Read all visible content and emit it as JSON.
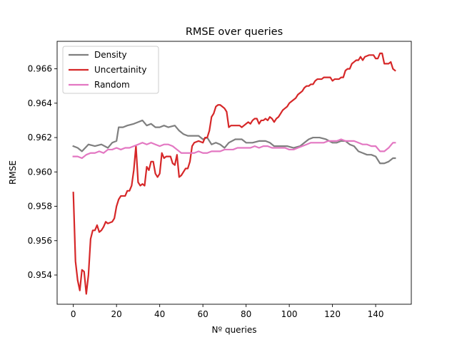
{
  "chart_data": {
    "type": "line",
    "title": "RMSE over queries",
    "xlabel": "Nº queries",
    "ylabel": "RMSE",
    "xlim": [
      -7.5,
      156.5
    ],
    "ylim": [
      0.9523,
      0.9676
    ],
    "xticks": [
      0,
      20,
      40,
      60,
      80,
      100,
      120,
      140
    ],
    "yticks": [
      0.954,
      0.956,
      0.958,
      0.96,
      0.962,
      0.964,
      0.966
    ],
    "ytick_labels": [
      "0.954",
      "0.956",
      "0.958",
      "0.960",
      "0.962",
      "0.964",
      "0.966"
    ],
    "grid": false,
    "legend_position": "upper-left",
    "series": [
      {
        "name": "Density",
        "color": "#7f7f7f",
        "points": [
          [
            0,
            0.9615
          ],
          [
            2,
            0.9614
          ],
          [
            4,
            0.9612
          ],
          [
            7,
            0.9616
          ],
          [
            10,
            0.9615
          ],
          [
            13,
            0.9616
          ],
          [
            16,
            0.9614
          ],
          [
            18,
            0.9617
          ],
          [
            20,
            0.9618
          ],
          [
            21,
            0.9626
          ],
          [
            23,
            0.9626
          ],
          [
            25,
            0.9627
          ],
          [
            28,
            0.9628
          ],
          [
            30,
            0.9629
          ],
          [
            32,
            0.963
          ],
          [
            34,
            0.9627
          ],
          [
            36,
            0.9628
          ],
          [
            38,
            0.9626
          ],
          [
            40,
            0.9626
          ],
          [
            42,
            0.9627
          ],
          [
            44,
            0.9626
          ],
          [
            47,
            0.9627
          ],
          [
            49,
            0.9624
          ],
          [
            51,
            0.9622
          ],
          [
            53,
            0.9621
          ],
          [
            55,
            0.9621
          ],
          [
            58,
            0.9621
          ],
          [
            60,
            0.9619
          ],
          [
            62,
            0.962
          ],
          [
            64,
            0.9616
          ],
          [
            66,
            0.9617
          ],
          [
            68,
            0.9616
          ],
          [
            70,
            0.9614
          ],
          [
            72,
            0.9617
          ],
          [
            75,
            0.9619
          ],
          [
            78,
            0.9619
          ],
          [
            80,
            0.9617
          ],
          [
            83,
            0.9617
          ],
          [
            86,
            0.9618
          ],
          [
            89,
            0.9618
          ],
          [
            91,
            0.9617
          ],
          [
            93,
            0.9615
          ],
          [
            96,
            0.9615
          ],
          [
            99,
            0.9615
          ],
          [
            102,
            0.9614
          ],
          [
            105,
            0.9615
          ],
          [
            107,
            0.9617
          ],
          [
            109,
            0.9619
          ],
          [
            111,
            0.962
          ],
          [
            114,
            0.962
          ],
          [
            117,
            0.9619
          ],
          [
            120,
            0.9617
          ],
          [
            122,
            0.9617
          ],
          [
            124,
            0.9618
          ],
          [
            126,
            0.9618
          ],
          [
            128,
            0.9616
          ],
          [
            130,
            0.9615
          ],
          [
            132,
            0.9612
          ],
          [
            134,
            0.9611
          ],
          [
            136,
            0.961
          ],
          [
            138,
            0.961
          ],
          [
            140,
            0.9609
          ],
          [
            142,
            0.9605
          ],
          [
            144,
            0.9605
          ],
          [
            146,
            0.9606
          ],
          [
            148,
            0.9608
          ],
          [
            149,
            0.9608
          ]
        ]
      },
      {
        "name": "Uncertainity",
        "color": "#d62728",
        "points": [
          [
            0,
            0.9588
          ],
          [
            1,
            0.9548
          ],
          [
            2,
            0.9537
          ],
          [
            3,
            0.9531
          ],
          [
            4,
            0.9543
          ],
          [
            5,
            0.9542
          ],
          [
            6,
            0.9529
          ],
          [
            7,
            0.954
          ],
          [
            8,
            0.9561
          ],
          [
            9,
            0.9566
          ],
          [
            10,
            0.9566
          ],
          [
            11,
            0.9569
          ],
          [
            12,
            0.9565
          ],
          [
            13,
            0.9566
          ],
          [
            14,
            0.9568
          ],
          [
            15,
            0.9571
          ],
          [
            16,
            0.957
          ],
          [
            18,
            0.9571
          ],
          [
            19,
            0.9573
          ],
          [
            20,
            0.958
          ],
          [
            21,
            0.9584
          ],
          [
            22,
            0.9586
          ],
          [
            23,
            0.9586
          ],
          [
            24,
            0.9586
          ],
          [
            25,
            0.9589
          ],
          [
            26,
            0.9589
          ],
          [
            27,
            0.9592
          ],
          [
            28,
            0.9601
          ],
          [
            29,
            0.9615
          ],
          [
            30,
            0.9594
          ],
          [
            31,
            0.9592
          ],
          [
            32,
            0.9593
          ],
          [
            33,
            0.9592
          ],
          [
            34,
            0.9603
          ],
          [
            35,
            0.9601
          ],
          [
            36,
            0.9606
          ],
          [
            37,
            0.9606
          ],
          [
            38,
            0.9599
          ],
          [
            39,
            0.9597
          ],
          [
            40,
            0.9599
          ],
          [
            41,
            0.9611
          ],
          [
            42,
            0.9608
          ],
          [
            43,
            0.9609
          ],
          [
            44,
            0.9609
          ],
          [
            45,
            0.9609
          ],
          [
            46,
            0.9605
          ],
          [
            47,
            0.9604
          ],
          [
            48,
            0.961
          ],
          [
            49,
            0.9597
          ],
          [
            50,
            0.9598
          ],
          [
            51,
            0.96
          ],
          [
            52,
            0.9602
          ],
          [
            53,
            0.9602
          ],
          [
            54,
            0.9606
          ],
          [
            55,
            0.9615
          ],
          [
            56,
            0.9617
          ],
          [
            58,
            0.9618
          ],
          [
            60,
            0.9617
          ],
          [
            61,
            0.962
          ],
          [
            62,
            0.962
          ],
          [
            63,
            0.9624
          ],
          [
            64,
            0.9632
          ],
          [
            65,
            0.9634
          ],
          [
            66,
            0.9638
          ],
          [
            67,
            0.9639
          ],
          [
            68,
            0.9639
          ],
          [
            69,
            0.9638
          ],
          [
            70,
            0.9637
          ],
          [
            71,
            0.9635
          ],
          [
            72,
            0.9626
          ],
          [
            73,
            0.9627
          ],
          [
            75,
            0.9627
          ],
          [
            76,
            0.9627
          ],
          [
            77,
            0.9627
          ],
          [
            78,
            0.9626
          ],
          [
            79,
            0.9627
          ],
          [
            80,
            0.9628
          ],
          [
            81,
            0.9629
          ],
          [
            82,
            0.9628
          ],
          [
            83,
            0.963
          ],
          [
            84,
            0.9631
          ],
          [
            85,
            0.9631
          ],
          [
            86,
            0.9628
          ],
          [
            87,
            0.963
          ],
          [
            88,
            0.963
          ],
          [
            89,
            0.9631
          ],
          [
            90,
            0.963
          ],
          [
            91,
            0.9632
          ],
          [
            92,
            0.9631
          ],
          [
            93,
            0.9629
          ],
          [
            94,
            0.9631
          ],
          [
            95,
            0.9632
          ],
          [
            96,
            0.9634
          ],
          [
            97,
            0.9636
          ],
          [
            98,
            0.9637
          ],
          [
            99,
            0.9638
          ],
          [
            100,
            0.964
          ],
          [
            101,
            0.9641
          ],
          [
            102,
            0.9642
          ],
          [
            103,
            0.9643
          ],
          [
            104,
            0.9645
          ],
          [
            105,
            0.9646
          ],
          [
            106,
            0.9647
          ],
          [
            107,
            0.9649
          ],
          [
            108,
            0.965
          ],
          [
            109,
            0.965
          ],
          [
            110,
            0.9651
          ],
          [
            111,
            0.9651
          ],
          [
            112,
            0.9653
          ],
          [
            113,
            0.9654
          ],
          [
            114,
            0.9654
          ],
          [
            115,
            0.9654
          ],
          [
            116,
            0.9655
          ],
          [
            117,
            0.9655
          ],
          [
            118,
            0.9655
          ],
          [
            119,
            0.9655
          ],
          [
            120,
            0.9653
          ],
          [
            121,
            0.9654
          ],
          [
            122,
            0.9654
          ],
          [
            123,
            0.9654
          ],
          [
            124,
            0.9655
          ],
          [
            125,
            0.9655
          ],
          [
            126,
            0.9659
          ],
          [
            127,
            0.966
          ],
          [
            128,
            0.966
          ],
          [
            129,
            0.9663
          ],
          [
            130,
            0.9664
          ],
          [
            131,
            0.9665
          ],
          [
            132,
            0.9665
          ],
          [
            133,
            0.9667
          ],
          [
            134,
            0.9665
          ],
          [
            135,
            0.9667
          ],
          [
            137,
            0.9668
          ],
          [
            139,
            0.9668
          ],
          [
            140,
            0.9666
          ],
          [
            141,
            0.9666
          ],
          [
            142,
            0.9669
          ],
          [
            143,
            0.9669
          ],
          [
            144,
            0.9663
          ],
          [
            145,
            0.9663
          ],
          [
            146,
            0.9663
          ],
          [
            147,
            0.9664
          ],
          [
            148,
            0.966
          ],
          [
            149,
            0.9659
          ]
        ]
      },
      {
        "name": "Random",
        "color": "#e377c2",
        "points": [
          [
            0,
            0.9609
          ],
          [
            2,
            0.9609
          ],
          [
            4,
            0.9608
          ],
          [
            6,
            0.961
          ],
          [
            8,
            0.9611
          ],
          [
            10,
            0.9611
          ],
          [
            12,
            0.9612
          ],
          [
            14,
            0.9611
          ],
          [
            16,
            0.9613
          ],
          [
            18,
            0.9613
          ],
          [
            20,
            0.9614
          ],
          [
            22,
            0.9613
          ],
          [
            24,
            0.9614
          ],
          [
            26,
            0.9614
          ],
          [
            28,
            0.9615
          ],
          [
            30,
            0.9616
          ],
          [
            32,
            0.9617
          ],
          [
            34,
            0.9616
          ],
          [
            36,
            0.9617
          ],
          [
            38,
            0.9616
          ],
          [
            40,
            0.9615
          ],
          [
            42,
            0.9616
          ],
          [
            44,
            0.9616
          ],
          [
            46,
            0.9615
          ],
          [
            48,
            0.9613
          ],
          [
            50,
            0.9611
          ],
          [
            52,
            0.9611
          ],
          [
            54,
            0.9611
          ],
          [
            56,
            0.9611
          ],
          [
            58,
            0.9612
          ],
          [
            60,
            0.9611
          ],
          [
            62,
            0.9611
          ],
          [
            64,
            0.9612
          ],
          [
            66,
            0.9612
          ],
          [
            68,
            0.9612
          ],
          [
            70,
            0.9613
          ],
          [
            72,
            0.9613
          ],
          [
            74,
            0.9613
          ],
          [
            76,
            0.9614
          ],
          [
            78,
            0.9614
          ],
          [
            80,
            0.9614
          ],
          [
            82,
            0.9614
          ],
          [
            84,
            0.9615
          ],
          [
            86,
            0.9614
          ],
          [
            88,
            0.9615
          ],
          [
            90,
            0.9615
          ],
          [
            92,
            0.9614
          ],
          [
            94,
            0.9614
          ],
          [
            96,
            0.9614
          ],
          [
            98,
            0.9614
          ],
          [
            100,
            0.9613
          ],
          [
            102,
            0.9613
          ],
          [
            104,
            0.9614
          ],
          [
            106,
            0.9615
          ],
          [
            108,
            0.9616
          ],
          [
            110,
            0.9617
          ],
          [
            112,
            0.9617
          ],
          [
            114,
            0.9617
          ],
          [
            116,
            0.9617
          ],
          [
            118,
            0.9618
          ],
          [
            120,
            0.9618
          ],
          [
            122,
            0.9618
          ],
          [
            124,
            0.9619
          ],
          [
            126,
            0.9618
          ],
          [
            128,
            0.9618
          ],
          [
            130,
            0.9618
          ],
          [
            132,
            0.9617
          ],
          [
            134,
            0.9616
          ],
          [
            136,
            0.9616
          ],
          [
            138,
            0.9615
          ],
          [
            140,
            0.9615
          ],
          [
            142,
            0.9612
          ],
          [
            144,
            0.9612
          ],
          [
            146,
            0.9614
          ],
          [
            148,
            0.9617
          ],
          [
            149,
            0.9617
          ]
        ]
      }
    ]
  }
}
